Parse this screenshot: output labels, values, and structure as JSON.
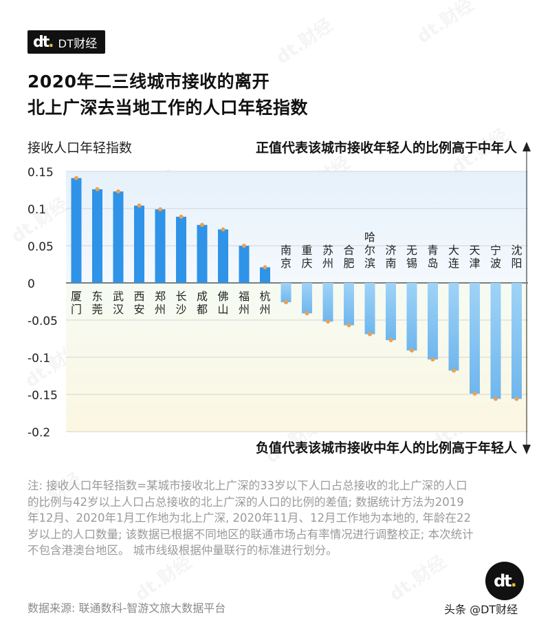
{
  "brand": {
    "mark": "dt.",
    "name": "DT财经"
  },
  "title_line1": "2020年二三线城市接收的离开",
  "title_line2": "北上广深去当地工作的人口年轻指数",
  "chart_data": {
    "type": "bar",
    "ylabel": "接收人口年轻指数",
    "annotation_positive": "正值代表该城市接收年轻人的比例高于中年人",
    "annotation_negative": "负值代表该城市接收中年人的比例高于年轻人",
    "ylim": [
      -0.2,
      0.15
    ],
    "yticks": [
      0.15,
      0.1,
      0.05,
      0,
      -0.05,
      -0.1,
      -0.15,
      -0.2
    ],
    "ytick_labels": [
      "0.15",
      "0.1",
      "0.05",
      "0",
      "-0.05",
      "-0.1",
      "-0.15",
      "-0.2"
    ],
    "categories": [
      "厦门",
      "东莞",
      "武汉",
      "西安",
      "郑州",
      "长沙",
      "成都",
      "佛山",
      "福州",
      "杭州",
      "南京",
      "重庆",
      "苏州",
      "合肥",
      "哈尔滨",
      "济南",
      "无锡",
      "青岛",
      "大连",
      "天津",
      "宁波",
      "沈阳"
    ],
    "values": [
      0.141,
      0.126,
      0.123,
      0.104,
      0.099,
      0.089,
      0.078,
      0.072,
      0.05,
      0.021,
      -0.026,
      -0.041,
      -0.052,
      -0.057,
      -0.069,
      -0.077,
      -0.091,
      -0.103,
      -0.118,
      -0.149,
      -0.156,
      -0.156
    ],
    "colors": {
      "positive": "#2f93e8",
      "negative": "#8cc9f4",
      "dot": "#f0a04b",
      "pos_band": "#e6f1fb",
      "neg_band": "#fbf7e2"
    }
  },
  "footnote": "注: 接收人口年轻指数=某城市接收北上广深的33岁以下人口占总接收的北上广深的人口的比例与42岁以上人口占总接收的北上广深的人口的比例的差值; 数据统计方法为2019年12月、2020年1月工作地为北上广深, 2020年11月、12月工作地为本地的, 年龄在22岁以上的人口数量; 该数据已根据不同地区的联通市场占有率情况进行调整校正; 本次统计不包含港澳台地区。 城市线级根据仲量联行的标准进行划分。",
  "source": "数据来源: 联通数科-智游文旅大数据平台",
  "logo": {
    "mark": "dt."
  },
  "platform_credit": "头条 @DT财经",
  "watermark_text": "dt.财经"
}
